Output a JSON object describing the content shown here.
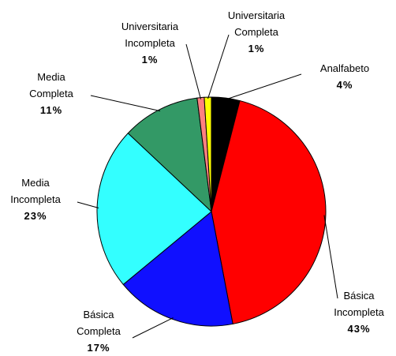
{
  "chart_data": {
    "type": "pie",
    "categories": [
      "Analfabeto",
      "Básica Incompleta",
      "Básica Completa",
      "Media Incompleta",
      "Media Completa",
      "Universitaria Incompleta",
      "Universitaria Completa"
    ],
    "values": [
      4,
      43,
      17,
      23,
      11,
      1,
      1
    ],
    "value_labels": [
      "4%",
      "43%",
      "17%",
      "23%",
      "11%",
      "1%",
      "1%"
    ],
    "colors": [
      "#000000",
      "#ff0000",
      "#1010ff",
      "#33ffff",
      "#339966",
      "#ff8080",
      "#ffff00"
    ]
  }
}
